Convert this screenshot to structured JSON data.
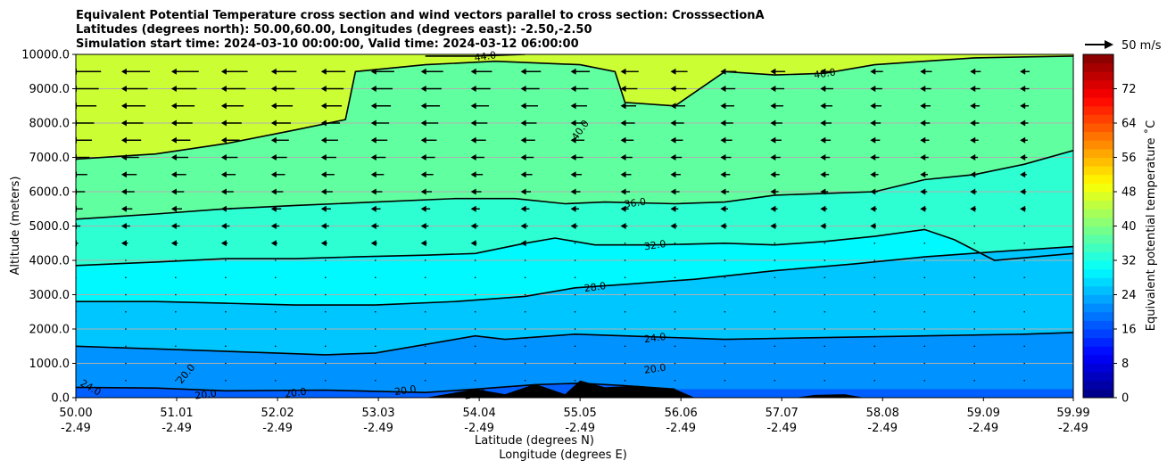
{
  "title": {
    "line1": "Equivalent Potential Temperature cross section and wind vectors parallel to cross section: CrosssectionA",
    "line2": "Latitudes (degrees north): 50.00,60.00, Longitudes (degrees east): -2.50,-2.50",
    "line3": "Simulation start time: 2024-03-10 00:00:00, Valid time: 2024-03-12 06:00:00"
  },
  "quiver_key": {
    "label": "50 m/s"
  },
  "colorbar": {
    "label": "Equivalent potential temperature $^\\circ$C",
    "label_display": "Equivalent potential temperature ˚C",
    "ticks": [
      "0",
      "8",
      "16",
      "24",
      "32",
      "40",
      "48",
      "56",
      "64",
      "72"
    ],
    "tick_values": [
      0,
      8,
      16,
      24,
      32,
      40,
      48,
      56,
      64,
      72
    ],
    "range": [
      0,
      80
    ],
    "colormap": "jet"
  },
  "chart_data": {
    "type": "contour",
    "title": "Equivalent Potential Temperature cross section and wind vectors parallel to cross section: CrosssectionA",
    "xlabel": "Latitude (degrees N)",
    "xlabel2": "Longitude (degrees E)",
    "ylabel": "Altitude (meters)",
    "ylim": [
      0,
      10000
    ],
    "xlim": [
      50.0,
      59.99
    ],
    "y_ticks": [
      "0.0",
      "1000.0",
      "2000.0",
      "3000.0",
      "4000.0",
      "5000.0",
      "6000.0",
      "7000.0",
      "8000.0",
      "9000.0",
      "10000.0"
    ],
    "y_tick_values": [
      0,
      1000,
      2000,
      3000,
      4000,
      5000,
      6000,
      7000,
      8000,
      9000,
      10000
    ],
    "x_ticks_lat": [
      "50.00",
      "51.01",
      "52.02",
      "53.03",
      "54.04",
      "55.05",
      "56.06",
      "57.07",
      "58.08",
      "59.09",
      "59.99"
    ],
    "x_ticks_lon": [
      "-2.49",
      "-2.49",
      "-2.49",
      "-2.49",
      "-2.49",
      "-2.49",
      "-2.49",
      "-2.49",
      "-2.49",
      "-2.49",
      "-2.49"
    ],
    "x_tick_values": [
      50.0,
      51.01,
      52.02,
      53.03,
      54.04,
      55.05,
      56.06,
      57.07,
      58.08,
      59.09,
      59.99
    ],
    "grid": "horizontal",
    "contour_lines": [
      {
        "level": 20.0,
        "points": [
          [
            50.0,
            300
          ],
          [
            50.8,
            280
          ],
          [
            51.5,
            200
          ],
          [
            52.5,
            220
          ],
          [
            53.5,
            150
          ],
          [
            54.0,
            250
          ],
          [
            54.6,
            380
          ],
          [
            55.05,
            420
          ],
          [
            55.5,
            350
          ],
          [
            56.0,
            250
          ]
        ]
      },
      {
        "level": 24.0,
        "points": [
          [
            50.0,
            1500
          ],
          [
            50.5,
            1450
          ],
          [
            51.0,
            1400
          ],
          [
            52.0,
            1300
          ],
          [
            52.5,
            1250
          ],
          [
            53.0,
            1300
          ],
          [
            53.6,
            1600
          ],
          [
            54.0,
            1800
          ],
          [
            54.3,
            1700
          ],
          [
            55.0,
            1850
          ],
          [
            55.5,
            1800
          ],
          [
            56.5,
            1700
          ],
          [
            57.5,
            1750
          ],
          [
            58.5,
            1800
          ],
          [
            59.5,
            1850
          ],
          [
            59.99,
            1900
          ]
        ]
      },
      {
        "level": 28.0,
        "points": [
          [
            50.0,
            2800
          ],
          [
            50.8,
            2800
          ],
          [
            51.5,
            2750
          ],
          [
            52.2,
            2700
          ],
          [
            53.0,
            2700
          ],
          [
            53.8,
            2800
          ],
          [
            54.5,
            2950
          ],
          [
            55.0,
            3200
          ],
          [
            55.5,
            3300
          ],
          [
            56.2,
            3450
          ],
          [
            57.0,
            3700
          ],
          [
            57.8,
            3900
          ],
          [
            58.5,
            4100
          ],
          [
            59.2,
            4250
          ],
          [
            59.99,
            4400
          ]
        ]
      },
      {
        "level": 32.0,
        "points": [
          [
            50.0,
            3850
          ],
          [
            50.8,
            3950
          ],
          [
            51.5,
            4050
          ],
          [
            52.2,
            4050
          ],
          [
            52.8,
            4100
          ],
          [
            53.5,
            4150
          ],
          [
            54.0,
            4200
          ],
          [
            54.5,
            4500
          ],
          [
            54.8,
            4650
          ],
          [
            55.2,
            4450
          ],
          [
            55.8,
            4450
          ],
          [
            56.5,
            4500
          ],
          [
            57.0,
            4450
          ],
          [
            57.5,
            4550
          ],
          [
            58.0,
            4700
          ],
          [
            58.5,
            4900
          ],
          [
            58.8,
            4600
          ],
          [
            59.2,
            4000
          ],
          [
            59.6,
            4100
          ],
          [
            59.99,
            4200
          ]
        ]
      },
      {
        "level": 36.0,
        "points": [
          [
            50.0,
            5200
          ],
          [
            50.8,
            5350
          ],
          [
            51.5,
            5500
          ],
          [
            52.2,
            5600
          ],
          [
            53.0,
            5700
          ],
          [
            53.8,
            5800
          ],
          [
            54.4,
            5800
          ],
          [
            54.9,
            5650
          ],
          [
            55.3,
            5700
          ],
          [
            56.0,
            5650
          ],
          [
            56.5,
            5700
          ],
          [
            57.0,
            5900
          ],
          [
            57.5,
            5950
          ],
          [
            58.0,
            6000
          ],
          [
            58.5,
            6350
          ],
          [
            59.0,
            6500
          ],
          [
            59.5,
            6800
          ],
          [
            59.99,
            7200
          ]
        ]
      },
      {
        "level": 40.0,
        "points": [
          [
            50.0,
            6950
          ],
          [
            50.8,
            7100
          ],
          [
            51.5,
            7400
          ],
          [
            52.2,
            7800
          ],
          [
            52.7,
            8100
          ],
          [
            52.8,
            9500
          ],
          [
            53.5,
            9700
          ],
          [
            54.2,
            9800
          ],
          [
            55.05,
            9700
          ],
          [
            55.4,
            9500
          ],
          [
            55.5,
            8600
          ],
          [
            56.0,
            8500
          ],
          [
            56.5,
            9500
          ],
          [
            57.0,
            9400
          ],
          [
            57.5,
            9450
          ],
          [
            58.0,
            9700
          ],
          [
            58.5,
            9800
          ],
          [
            59.0,
            9900
          ],
          [
            59.99,
            9950
          ]
        ]
      },
      {
        "level": 44.0,
        "points": [
          [
            53.5,
            9950
          ],
          [
            54.0,
            9950
          ],
          [
            54.5,
            10000
          ]
        ]
      }
    ],
    "contour_labels": [
      "24.0",
      "20.0",
      "20.0",
      "20.0",
      "20.0",
      "20.0",
      "20.0",
      "20.0",
      "24.0",
      "28.0",
      "32.0",
      "36.0",
      "40.0",
      "40.0",
      "44.0",
      "20.0"
    ],
    "terrain": [
      [
        53.5,
        0
      ],
      [
        54.0,
        250
      ],
      [
        54.3,
        100
      ],
      [
        54.6,
        400
      ],
      [
        54.9,
        100
      ],
      [
        55.05,
        500
      ],
      [
        55.3,
        300
      ],
      [
        55.6,
        350
      ],
      [
        56.0,
        250
      ],
      [
        56.2,
        0
      ],
      [
        57.2,
        0
      ],
      [
        57.4,
        80
      ],
      [
        57.7,
        100
      ],
      [
        57.9,
        0
      ]
    ],
    "wind_vectors": "arrows pointing in -x direction (southward); strongest (approx. 15-20 m/s) above 7000 m north of 50.0 N, weakening with latitude; near-zero below 4000 m"
  }
}
